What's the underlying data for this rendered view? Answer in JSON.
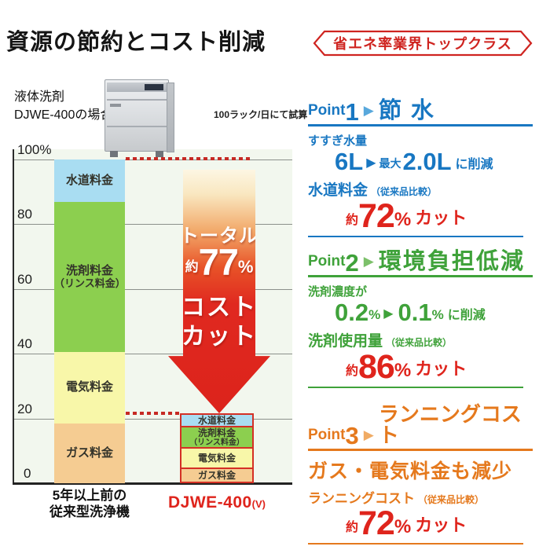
{
  "page": {
    "title": "資源の節約とコスト削減",
    "badge": "省エネ率業界トップクラス"
  },
  "icons": {
    "triangle": "▶"
  },
  "chart": {
    "condition_line1": "液体洗剤",
    "condition_line2": "DJWE-400の場合",
    "estimate_note": "100ラック/日にて試算",
    "x_left_line1": "5年以上前の",
    "x_left_line2": "従来型洗浄機",
    "x_right": "DJWE-400",
    "x_right_suffix": "(V)",
    "arrow": {
      "top": "トータル",
      "approx": "約",
      "value": "77",
      "unit": "%",
      "line3": "コスト",
      "line4": "カット"
    }
  },
  "chart_data": {
    "type": "bar",
    "stacked": true,
    "title": "資源の節約とコスト削減",
    "categories": [
      "5年以上前の従来型洗浄機",
      "DJWE-400(V)"
    ],
    "series": [
      {
        "name": "水道料金",
        "values": [
          13,
          3.5
        ],
        "color": "#a9ddf2",
        "label_lines": [
          "水道料金"
        ]
      },
      {
        "name": "洗剤料金（リンス料金）",
        "values": [
          46.5,
          7
        ],
        "color": "#8ccf4f",
        "label_lines": [
          "洗剤料金",
          "（リンス料金）"
        ]
      },
      {
        "name": "電気料金",
        "values": [
          22,
          6.5
        ],
        "color": "#f8f7a9",
        "label_lines": [
          "電気料金"
        ]
      },
      {
        "name": "ガス料金",
        "values": [
          18.5,
          4.5
        ],
        "color": "#f5cc92",
        "label_lines": [
          "ガス料金"
        ]
      }
    ],
    "ylabel": "%",
    "ylim": [
      0,
      100
    ],
    "yticks": [
      {
        "v": 100,
        "label": "100%"
      },
      {
        "v": 80,
        "label": "80"
      },
      {
        "v": 60,
        "label": "60"
      },
      {
        "v": 40,
        "label": "40"
      },
      {
        "v": 20,
        "label": "20"
      },
      {
        "v": 0,
        "label": "0"
      }
    ],
    "grid": true,
    "annotation": "トータル約77%コストカット",
    "note": "100ラック/日にて試算"
  },
  "points": [
    {
      "label": "Point",
      "number": "1",
      "title": "節 水",
      "sub": "すすぎ水量",
      "from": "6L",
      "from_unit": "",
      "mid": "最大",
      "to": "2.0L",
      "to_unit": "",
      "suffix": "に削減",
      "metric": "水道料金",
      "metric_note": "（従来品比較）",
      "cut_approx": "約",
      "cut_value": "72",
      "cut_unit": "%",
      "cut_word": "カット"
    },
    {
      "label": "Point",
      "number": "2",
      "title": "環境負担低減",
      "sub": "洗剤濃度が",
      "from": "0.2",
      "from_unit": "%",
      "mid": "",
      "to": "0.1",
      "to_unit": "%",
      "suffix": "に削減",
      "metric": "洗剤使用量",
      "metric_note": "（従来品比較）",
      "cut_approx": "約",
      "cut_value": "86",
      "cut_unit": "%",
      "cut_word": "カット"
    },
    {
      "label": "Point",
      "number": "3",
      "title": "ランニングコスト",
      "headline": "ガス・電気料金も減少",
      "metric": "ランニングコスト",
      "metric_note": "（従来品比較）",
      "cut_approx": "約",
      "cut_value": "72",
      "cut_unit": "%",
      "cut_word": "カット"
    }
  ],
  "colors": {
    "point1_blue": "#1877c2",
    "point2_green": "#3fa23a",
    "point3_orange": "#e5791d",
    "cut_red": "#df241c",
    "badge_red": "#cf2420",
    "dotted_red": "#c62a24",
    "bar_border_red": "#d43025",
    "bar_water": "#a9ddf2",
    "bar_detergent": "#8ccf4f",
    "bar_electric": "#f8f7a9",
    "bar_gas": "#f5cc92"
  }
}
